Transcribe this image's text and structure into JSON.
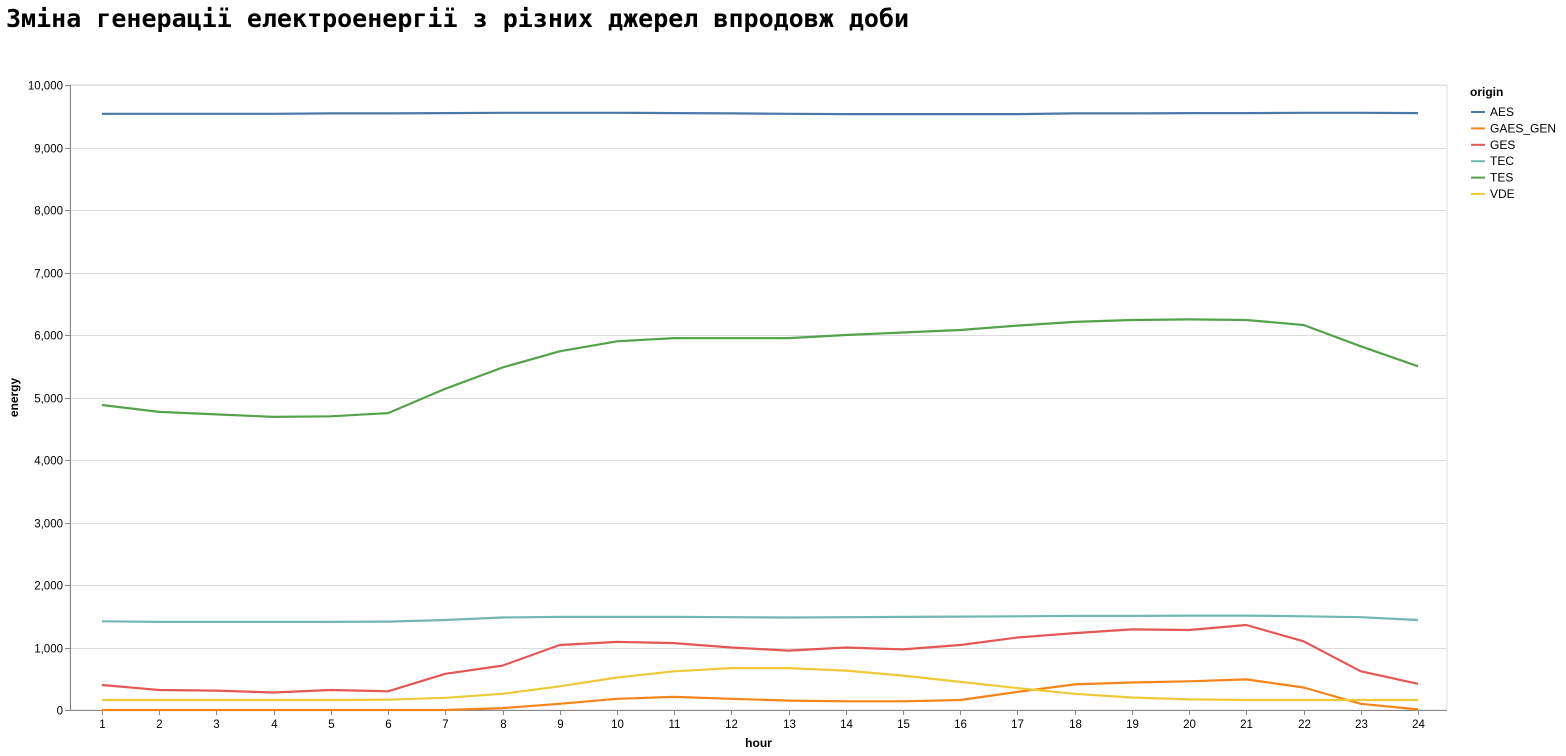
{
  "chart_data": {
    "type": "line",
    "title": "Зміна генерації електроенергії з різних джерел впродовж доби",
    "xlabel": "hour",
    "ylabel": "energy",
    "legend_title": "origin",
    "legend_position": "top-right",
    "grid": true,
    "x": [
      1,
      2,
      3,
      4,
      5,
      6,
      7,
      8,
      9,
      10,
      11,
      12,
      13,
      14,
      15,
      16,
      17,
      18,
      19,
      20,
      21,
      22,
      23,
      24
    ],
    "xlim": [
      1,
      24
    ],
    "ylim": [
      0,
      10000
    ],
    "yticks": [
      0,
      1000,
      2000,
      3000,
      4000,
      5000,
      6000,
      7000,
      8000,
      9000,
      10000
    ],
    "ytick_labels": [
      "0",
      "1,000",
      "2,000",
      "3,000",
      "4,000",
      "5,000",
      "6,000",
      "7,000",
      "8,000",
      "9,000",
      "10,000"
    ],
    "series": [
      {
        "name": "AES",
        "color": "#4c78a8",
        "values": [
          9540,
          9540,
          9540,
          9540,
          9545,
          9545,
          9550,
          9555,
          9555,
          9555,
          9550,
          9545,
          9540,
          9535,
          9535,
          9535,
          9535,
          9545,
          9545,
          9550,
          9550,
          9555,
          9555,
          9550
        ]
      },
      {
        "name": "GAES_GEN",
        "color": "#f58518",
        "values": [
          0,
          0,
          0,
          0,
          0,
          0,
          0,
          30,
          100,
          180,
          210,
          180,
          150,
          140,
          140,
          160,
          290,
          410,
          440,
          460,
          490,
          360,
          100,
          10
        ]
      },
      {
        "name": "GES",
        "color": "#e45756",
        "values": [
          400,
          320,
          310,
          280,
          320,
          300,
          580,
          710,
          1040,
          1090,
          1070,
          1000,
          950,
          1000,
          970,
          1040,
          1160,
          1230,
          1290,
          1280,
          1360,
          1100,
          620,
          420
        ]
      },
      {
        "name": "TEC",
        "color": "#72b7b2",
        "values": [
          1420,
          1410,
          1410,
          1410,
          1410,
          1415,
          1440,
          1480,
          1490,
          1490,
          1490,
          1485,
          1480,
          1485,
          1490,
          1495,
          1500,
          1505,
          1505,
          1510,
          1510,
          1500,
          1485,
          1440
        ]
      },
      {
        "name": "TES",
        "color": "#54a24b",
        "values": [
          4880,
          4770,
          4730,
          4690,
          4700,
          4750,
          5140,
          5480,
          5740,
          5900,
          5950,
          5950,
          5950,
          6000,
          6040,
          6080,
          6150,
          6210,
          6240,
          6250,
          6240,
          6160,
          5820,
          5500
        ]
      },
      {
        "name": "VDE",
        "color": "#eeca3b",
        "values": [
          160,
          160,
          160,
          160,
          160,
          165,
          195,
          260,
          380,
          520,
          620,
          670,
          670,
          630,
          550,
          450,
          350,
          260,
          200,
          170,
          160,
          160,
          160,
          160
        ]
      }
    ]
  }
}
